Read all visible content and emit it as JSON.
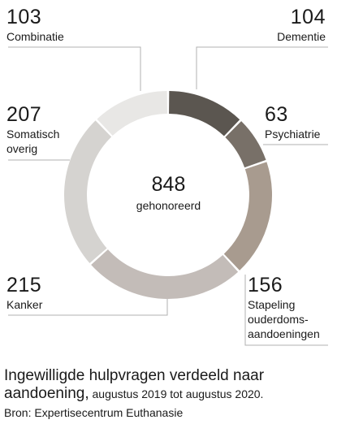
{
  "chart_data": {
    "type": "donut",
    "total": 848,
    "total_label": "gehonoreerd",
    "categories": [
      "Dementie",
      "Psychiatrie",
      "Stapeling ouderdomsaandoeningen",
      "Kanker",
      "Somatisch overig",
      "Combinatie"
    ],
    "values": [
      104,
      63,
      156,
      215,
      207,
      103
    ],
    "colors": [
      "#5b5650",
      "#787068",
      "#a89b8f",
      "#c3bcb8",
      "#d5d3d0",
      "#e8e7e5"
    ],
    "labels": {
      "dementie": {
        "value": "104",
        "name": "Dementie"
      },
      "psychiatrie": {
        "value": "63",
        "name": "Psychiatrie"
      },
      "stapeling": {
        "value": "156",
        "name_lines": [
          "Stapeling",
          "ouderdoms-",
          "aandoeningen"
        ]
      },
      "kanker": {
        "value": "215",
        "name": "Kanker"
      },
      "somatisch": {
        "value": "207",
        "name_lines": [
          "Somatisch",
          "overig"
        ]
      },
      "combinatie": {
        "value": "103",
        "name": "Combinatie"
      }
    }
  },
  "caption": {
    "title_line1": "Ingewilligde hulpvragen verdeeld naar",
    "title_line2": "aandoening,",
    "period": " augustus 2019 tot augustus 2020.",
    "source": "Bron: Expertisecentrum Euthanasie"
  }
}
